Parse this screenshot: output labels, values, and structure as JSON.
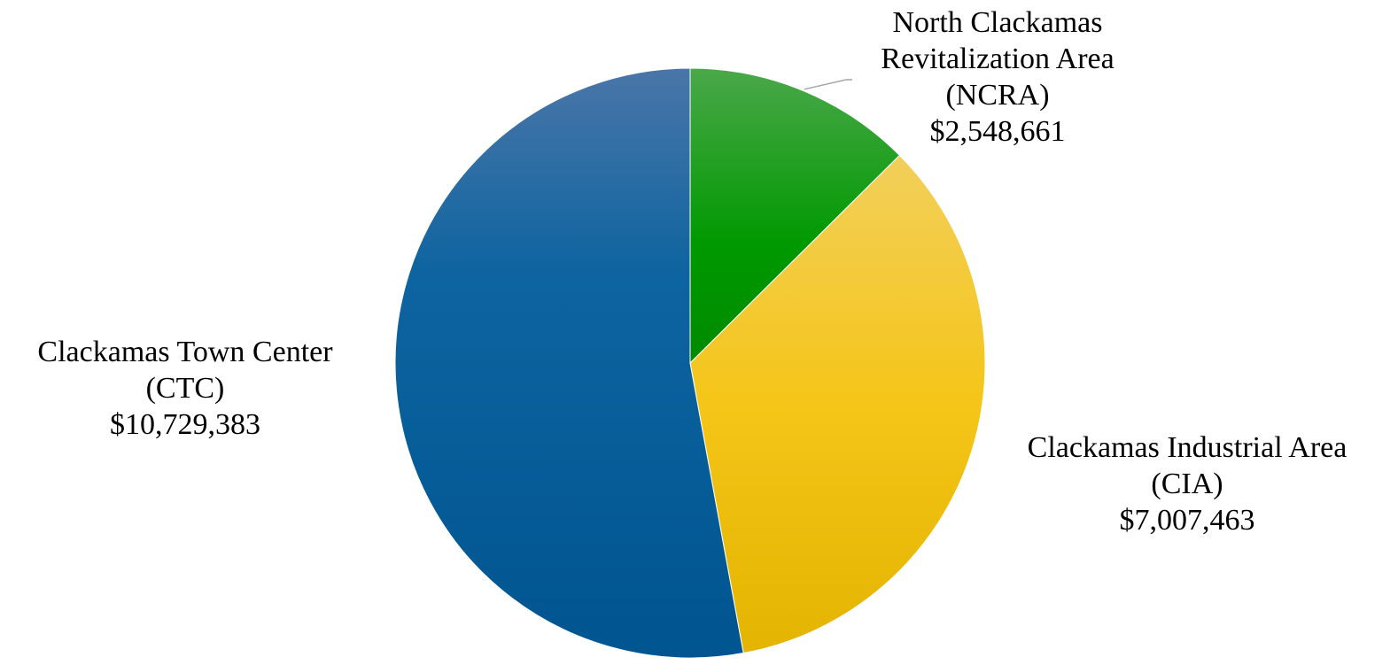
{
  "chart_data": {
    "type": "pie",
    "title": "",
    "slices": [
      {
        "name": "North Clackamas Revitalization Area (NCRA)",
        "label_lines": [
          "North Clackamas",
          "Revitalization Area",
          "(NCRA)"
        ],
        "value": 2548661,
        "value_label": "$2,548,661",
        "color": "#1a9c1a"
      },
      {
        "name": "Clackamas Industrial Area (CIA)",
        "label_lines": [
          "Clackamas Industrial Area",
          "(CIA)"
        ],
        "value": 7007463,
        "value_label": "$7,007,463",
        "color": "#f2c200"
      },
      {
        "name": "Clackamas Town Center (CTC)",
        "label_lines": [
          "Clackamas Town Center",
          "(CTC)"
        ],
        "value": 10729383,
        "value_label": "$10,729,383",
        "color": "#0a5e9a"
      }
    ],
    "start_angle_deg": 0,
    "direction": "clockwise",
    "legend": "none",
    "data_labels": "outside"
  }
}
